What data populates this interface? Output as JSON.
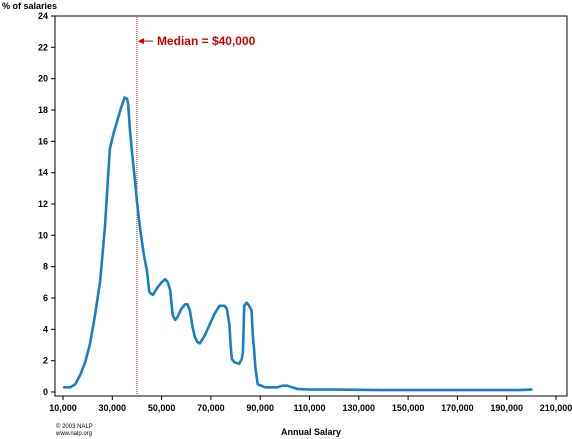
{
  "chart_data": {
    "type": "line",
    "title": "",
    "ylabel": "% of salaries",
    "xlabel": "Annual Salary",
    "xlim": [
      10000,
      210000
    ],
    "ylim": [
      0,
      24
    ],
    "x_ticks": [
      10000,
      30000,
      50000,
      70000,
      90000,
      110000,
      130000,
      150000,
      170000,
      190000,
      210000
    ],
    "x_tick_labels": [
      "10,000",
      "30,000",
      "50,000",
      "70,000",
      "90,000",
      "110,000",
      "130,000",
      "150,000",
      "170,000",
      "190,000",
      "210,000"
    ],
    "y_ticks": [
      0,
      2,
      4,
      6,
      8,
      10,
      12,
      14,
      16,
      18,
      20,
      22,
      24
    ],
    "y_tick_labels": [
      "0",
      "2",
      "4",
      "6",
      "8",
      "10",
      "12",
      "14",
      "16",
      "18",
      "20",
      "22",
      "24"
    ],
    "series_color": "#1a7fc1",
    "series": [
      {
        "x": [
          10500,
          13000,
          15000,
          17000,
          19000,
          21000,
          23000,
          25000,
          27000,
          29000,
          30500,
          32000,
          33500,
          35000,
          36000,
          36500,
          37000,
          38000,
          39000,
          40000,
          41000,
          42000,
          43000,
          44000,
          45000,
          45500,
          46500,
          48000,
          50000,
          51500,
          52500,
          53500,
          54500,
          55500,
          56500,
          58000,
          59500,
          60500,
          61500,
          62500,
          63500,
          64500,
          65500,
          67500,
          69500,
          71500,
          73500,
          75500,
          76500,
          77500,
          78000,
          78500,
          79500,
          81500,
          82500,
          83000,
          83500,
          84500,
          85500,
          86500,
          87000,
          87500,
          88000,
          89000,
          92000,
          95000,
          97000,
          99000,
          101000,
          103000,
          105000,
          110000,
          120000,
          140000,
          160000,
          180000,
          195000,
          200000
        ],
        "y": [
          0.3,
          0.3,
          0.5,
          1.1,
          1.9,
          3.1,
          4.9,
          7.0,
          10.5,
          15.5,
          16.5,
          17.3,
          18.1,
          18.8,
          18.7,
          18.3,
          17.0,
          15.3,
          13.8,
          12.2,
          10.8,
          9.6,
          8.6,
          7.8,
          6.4,
          6.3,
          6.2,
          6.6,
          7.0,
          7.2,
          7.0,
          6.5,
          4.9,
          4.6,
          4.8,
          5.3,
          5.6,
          5.6,
          5.2,
          4.2,
          3.5,
          3.2,
          3.1,
          3.6,
          4.3,
          5.0,
          5.5,
          5.5,
          5.3,
          4.3,
          3.0,
          2.1,
          1.9,
          1.8,
          2.1,
          2.5,
          5.5,
          5.7,
          5.5,
          5.2,
          3.6,
          2.8,
          1.6,
          0.5,
          0.3,
          0.3,
          0.3,
          0.4,
          0.4,
          0.3,
          0.2,
          0.15,
          0.15,
          0.12,
          0.12,
          0.12,
          0.12,
          0.15
        ]
      }
    ],
    "annotations": [
      {
        "type": "vline",
        "x": 40000,
        "color": "#cc0000",
        "label": "Median = $40,000",
        "label_y": 22.4
      }
    ],
    "credits": [
      "© 2003 NALP",
      "www.nalp.org"
    ],
    "grid": false,
    "legend": "none"
  }
}
